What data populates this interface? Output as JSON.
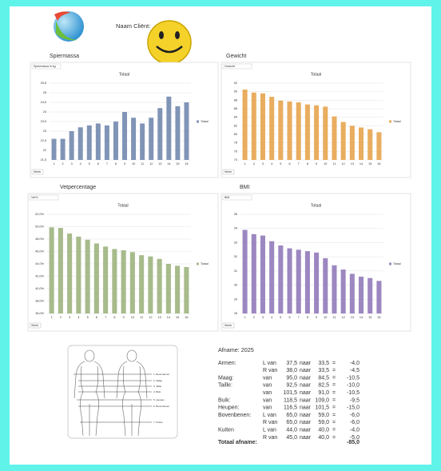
{
  "header": {
    "client_label": "Naam Cliënt:"
  },
  "chart_data": [
    {
      "type": "bar",
      "heading": "Spiermassa",
      "tag": "Spiermassa in kg",
      "title": "Totaal",
      "x_label": "Week",
      "categories": [
        "1",
        "2",
        "3",
        "4",
        "5",
        "6",
        "7",
        "8",
        "9",
        "10",
        "11",
        "12",
        "13",
        "14",
        "15",
        "16"
      ],
      "series": [
        {
          "name": "Totaal",
          "color": "#8094b6",
          "values": [
            22.6,
            22.6,
            23.0,
            23.2,
            23.3,
            23.4,
            23.3,
            23.5,
            24.0,
            23.7,
            23.4,
            23.7,
            24.2,
            24.8,
            24.3,
            24.5
          ]
        }
      ],
      "ylim": [
        21.5,
        25.5
      ],
      "yticks": [
        {
          "value": 21.5,
          "label": "21,5"
        },
        22,
        {
          "value": 22.5,
          "label": "22,5"
        },
        23,
        {
          "value": 23.5,
          "label": "23,5"
        },
        24,
        {
          "value": 24.5,
          "label": "24,5"
        },
        25,
        {
          "value": 25.5,
          "label": "25,5"
        }
      ],
      "grid": true
    },
    {
      "type": "bar",
      "heading": "Gewicht",
      "tag": "Gewicht",
      "title": "Totaal",
      "x_label": "Week",
      "categories": [
        "1",
        "2",
        "3",
        "4",
        "5",
        "6",
        "7",
        "8",
        "9",
        "10",
        "11",
        "12",
        "13",
        "14",
        "15",
        "16"
      ],
      "series": [
        {
          "name": "Totaal",
          "color": "#e9ad5f",
          "values": [
            90.5,
            89.8,
            89.6,
            88.8,
            87.9,
            87.7,
            87.5,
            87.0,
            86.8,
            86.5,
            84.2,
            82.9,
            82.0,
            81.6,
            81.2,
            80.5
          ]
        }
      ],
      "ylim": [
        74,
        92
      ],
      "yticks": [
        74,
        76,
        78,
        80,
        82,
        84,
        86,
        88,
        90,
        92
      ],
      "grid": true
    },
    {
      "type": "bar",
      "heading": "Vetpercentage",
      "tag": "Vet%",
      "title": "Totaal",
      "x_label": "Week",
      "categories": [
        "1",
        "2",
        "3",
        "4",
        "5",
        "6",
        "7",
        "8",
        "9",
        "10",
        "11",
        "12",
        "13",
        "14",
        "15",
        "16"
      ],
      "series": [
        {
          "name": "Totaal",
          "color": "#a7bb8b",
          "values": [
            49.9,
            49.8,
            48.9,
            48.4,
            47.9,
            47.3,
            46.8,
            46.4,
            46.2,
            45.9,
            45.4,
            45.2,
            44.8,
            44.0,
            43.7,
            43.5
          ]
        }
      ],
      "ylim": [
        36,
        52
      ],
      "yticks": [
        {
          "value": 36,
          "label": "36,0%"
        },
        {
          "value": 38,
          "label": "38,0%"
        },
        {
          "value": 40,
          "label": "40,0%"
        },
        {
          "value": 42,
          "label": "42,0%"
        },
        {
          "value": 44,
          "label": "44,0%"
        },
        {
          "value": 46,
          "label": "46,0%"
        },
        {
          "value": 48,
          "label": "48,0%"
        },
        {
          "value": 50,
          "label": "50,0%"
        },
        {
          "value": 52,
          "label": "52,0%"
        }
      ],
      "grid": true
    },
    {
      "type": "bar",
      "heading": "BMI",
      "tag": "BMI",
      "title": "Totaal",
      "x_label": "Week",
      "categories": [
        "1",
        "2",
        "3",
        "4",
        "5",
        "6",
        "7",
        "8",
        "9",
        "10",
        "11",
        "12",
        "13",
        "14",
        "15",
        "16"
      ],
      "series": [
        {
          "name": "Totaal",
          "color": "#9c87c1",
          "values": [
            33.9,
            33.6,
            33.5,
            33.1,
            32.8,
            32.6,
            32.5,
            32.4,
            32.3,
            31.9,
            31.4,
            31.1,
            30.8,
            30.6,
            30.5,
            30.3
          ]
        }
      ],
      "ylim": [
        28,
        35
      ],
      "yticks": [
        28,
        29,
        30,
        31,
        32,
        33,
        34,
        35
      ],
      "grid": true
    }
  ],
  "figure": {
    "labels": [
      "1. Bovenarmen",
      "2. Maag",
      "3. Taille",
      "4. Buik",
      "5. Heupen",
      "6. Bovenbenen",
      "7. Kuiten"
    ]
  },
  "measurements": {
    "title": "Afname: 2025",
    "rows": [
      [
        "Armen:",
        "L van",
        "37,5",
        "naar",
        "33,5",
        "=",
        "-4,0"
      ],
      [
        null,
        "R van",
        "38,0",
        "naar",
        "33,5",
        "=",
        "-4,5"
      ],
      [
        "Maag:",
        "van",
        "95,0",
        "naar",
        "84,5",
        "=",
        "-10,5"
      ],
      [
        "Taille:",
        "van",
        "92,5",
        "naar",
        "82,5",
        "=",
        "-10,0"
      ],
      [
        null,
        "van",
        "101,5",
        "naar",
        "91,0",
        "=",
        "-10,5"
      ],
      [
        "Buik:",
        "van",
        "118,5",
        "naar",
        "109,0",
        "=",
        "-9,5"
      ],
      [
        "Heupen:",
        "van",
        "116,5",
        "naar",
        "101,5",
        "=",
        "-15,0"
      ],
      [
        "Bovenbenen:",
        "L van",
        "65,0",
        "naar",
        "59,0",
        "=",
        "-6,0"
      ],
      [
        null,
        "R van",
        "65,0",
        "naar",
        "59,0",
        "=",
        "-6,0"
      ],
      [
        "Kuiten",
        "L van",
        "44,0",
        "naar",
        "40,0",
        "=",
        "-4,0"
      ],
      [
        null,
        "R van",
        "45,0",
        "naar",
        "40,0",
        "=",
        "-5,0"
      ]
    ],
    "total_label": "Totaal afname:",
    "total_value": "-85,0"
  }
}
